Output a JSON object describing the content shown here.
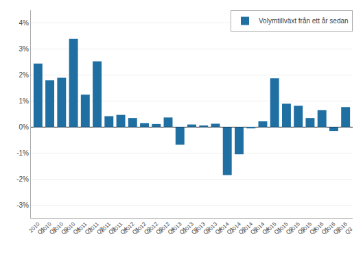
{
  "chart_data": {
    "type": "bar",
    "categories": [
      "2010\nQ1",
      "2010\nQ2",
      "2010\nQ3",
      "2010\nQ4",
      "2011\nQ1",
      "2011\nQ2",
      "2011\nQ3",
      "2011\nQ4",
      "2012\nQ1",
      "2012\nQ2",
      "2012\nQ3",
      "2012\nQ4",
      "2013\nQ1",
      "2013\nQ2",
      "2013\nQ3",
      "2013\nQ4",
      "2014\nQ1",
      "2014\nQ2",
      "2014\nQ3",
      "2014\nQ4",
      "2015\nQ1",
      "2015\nQ2",
      "2015\nQ3",
      "2015\nQ4",
      "2016\nQ1",
      "2016\nQ2",
      "2016\nQ3"
    ],
    "series": [
      {
        "name": "Volymtillväxt från ett år sedan",
        "color": "#1f6fa3",
        "values": [
          2.45,
          1.8,
          1.9,
          3.4,
          1.25,
          2.53,
          0.42,
          0.47,
          0.35,
          0.15,
          0.12,
          0.37,
          -0.68,
          0.1,
          0.06,
          0.13,
          -1.85,
          -1.05,
          -0.05,
          0.22,
          1.88,
          0.9,
          0.82,
          0.35,
          0.65,
          -0.15,
          0.77
        ]
      }
    ],
    "ylim": [
      -3.5,
      4.5
    ],
    "yticks": [
      {
        "value": -3,
        "label": "-3%"
      },
      {
        "value": -2,
        "label": "-2%"
      },
      {
        "value": -1,
        "label": "-1%"
      },
      {
        "value": 0,
        "label": "0%"
      },
      {
        "value": 1,
        "label": "1%"
      },
      {
        "value": 2,
        "label": "2%"
      },
      {
        "value": 3,
        "label": "3%"
      },
      {
        "value": 4,
        "label": "4%"
      }
    ],
    "grid": true,
    "legend": "upper right"
  }
}
